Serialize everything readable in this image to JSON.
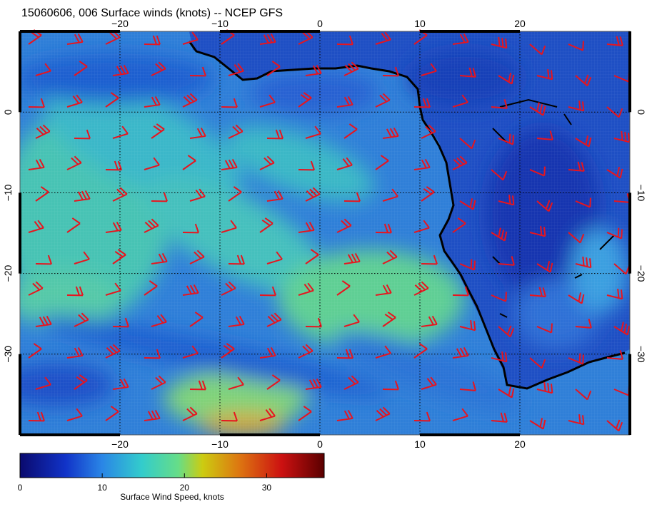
{
  "title": "15060606, 006 Surface winds (knots) -- NCEP GFS",
  "map": {
    "lon_range": [
      -30,
      31
    ],
    "lat_range": [
      -40,
      10
    ],
    "lon_ticks": [
      -20,
      -10,
      0,
      10,
      20
    ],
    "lat_ticks": [
      0,
      -10,
      -20,
      -30
    ],
    "lon_tick_labels": [
      "−20",
      "−10",
      "0",
      "10",
      "20"
    ],
    "lat_tick_labels": [
      "0",
      "−10",
      "−20",
      "−30"
    ],
    "gridlines": "dotted",
    "barb_color": "#e8141e",
    "coastline_color": "#000000",
    "field": "Surface wind speed, color-filled"
  },
  "colorbar": {
    "label": "Surface Wind Speed, knots",
    "range": [
      0,
      37
    ],
    "ticks": [
      0,
      10,
      20,
      30
    ],
    "tick_labels": [
      "0",
      "10",
      "20",
      "30"
    ],
    "colors": [
      "#0a0a6e",
      "#1133c8",
      "#2a86e6",
      "#33cccc",
      "#66dd88",
      "#cccc11",
      "#dd7711",
      "#cc1111",
      "#5a0000"
    ]
  }
}
